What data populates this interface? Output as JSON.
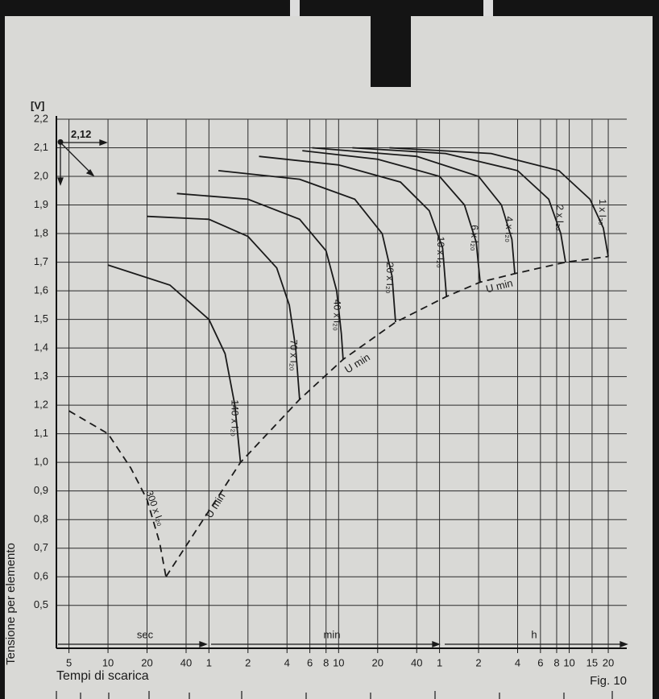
{
  "chart_data": {
    "type": "line",
    "y_unit": "[V]",
    "ylabel": "Tensione per elemento",
    "xlabel": "Tempi di scarica",
    "figure_label": "Fig. 10",
    "x_segments": [
      "sec",
      "min",
      "h"
    ],
    "marker": {
      "label": "2,12",
      "value": 2.12
    },
    "log_x": true,
    "grid": true,
    "xlim": [
      4,
      100000
    ],
    "ylim": [
      0.35,
      2.2
    ],
    "xticks": [
      5,
      10,
      20,
      40,
      {
        "value": 60,
        "label": "1"
      },
      {
        "value": 120,
        "label": "2"
      },
      {
        "value": 240,
        "label": "4"
      },
      {
        "value": 360,
        "label": "6"
      },
      {
        "value": 480,
        "label": "8"
      },
      {
        "value": 600,
        "label": "10"
      },
      {
        "value": 1200,
        "label": "20"
      },
      {
        "value": 2400,
        "label": "40"
      },
      {
        "value": 3600,
        "label": "1"
      },
      {
        "value": 7200,
        "label": "2"
      },
      {
        "value": 14400,
        "label": "4"
      },
      {
        "value": 21600,
        "label": "6"
      },
      {
        "value": 28800,
        "label": "8"
      },
      {
        "value": 36000,
        "label": "10"
      },
      {
        "value": 54000,
        "label": "15"
      },
      {
        "value": 72000,
        "label": "20"
      }
    ],
    "yticks": [
      {
        "value": 0.5,
        "label": "0,5"
      },
      {
        "value": 0.6,
        "label": "0,6"
      },
      {
        "value": 0.7,
        "label": "0,7"
      },
      {
        "value": 0.8,
        "label": "0,8"
      },
      {
        "value": 0.9,
        "label": "0,9"
      },
      {
        "value": 1.0,
        "label": "1,0"
      },
      {
        "value": 1.1,
        "label": "1,1"
      },
      {
        "value": 1.2,
        "label": "1,2"
      },
      {
        "value": 1.3,
        "label": "1,3"
      },
      {
        "value": 1.4,
        "label": "1,4"
      },
      {
        "value": 1.5,
        "label": "1,5"
      },
      {
        "value": 1.6,
        "label": "1,6"
      },
      {
        "value": 1.7,
        "label": "1,7"
      },
      {
        "value": 1.8,
        "label": "1,8"
      },
      {
        "value": 1.9,
        "label": "1,9"
      },
      {
        "value": 2.0,
        "label": "2,0"
      },
      {
        "value": 2.1,
        "label": "2,1"
      },
      {
        "value": 2.2,
        "label": "2,2"
      }
    ],
    "series": [
      {
        "name": "300 x I₂₀",
        "color": "#1a1a1a",
        "dash": true,
        "x": [
          5,
          10,
          15,
          20,
          25,
          28
        ],
        "values": [
          1.18,
          1.1,
          0.98,
          0.87,
          0.72,
          0.6
        ]
      },
      {
        "name": "140 x I₂₀",
        "color": "#1a1a1a",
        "dash": false,
        "x": [
          10,
          30,
          60,
          80,
          95,
          100,
          105
        ],
        "values": [
          1.69,
          1.62,
          1.5,
          1.38,
          1.2,
          1.1,
          1.0
        ]
      },
      {
        "name": "70 x I₂₀",
        "color": "#1a1a1a",
        "dash": false,
        "x": [
          20,
          60,
          120,
          200,
          250,
          280,
          300
        ],
        "values": [
          1.86,
          1.85,
          1.79,
          1.68,
          1.55,
          1.4,
          1.22
        ]
      },
      {
        "name": "40 x I₂₀",
        "color": "#1a1a1a",
        "dash": false,
        "x": [
          34,
          120,
          300,
          480,
          580,
          630,
          650
        ],
        "values": [
          1.94,
          1.92,
          1.85,
          1.74,
          1.6,
          1.45,
          1.36
        ]
      },
      {
        "name": "20 x I₂₀",
        "color": "#1a1a1a",
        "dash": false,
        "x": [
          71,
          300,
          800,
          1300,
          1550,
          1650
        ],
        "values": [
          2.02,
          1.99,
          1.92,
          1.8,
          1.65,
          1.49
        ]
      },
      {
        "name": "10 x I₂₀",
        "color": "#1a1a1a",
        "dash": false,
        "x": [
          146,
          600,
          1800,
          3000,
          3800,
          4070
        ],
        "values": [
          2.07,
          2.04,
          1.98,
          1.88,
          1.75,
          1.58
        ]
      },
      {
        "name": "6 x I₂₀",
        "color": "#1a1a1a",
        "dash": false,
        "x": [
          315,
          1200,
          3600,
          5600,
          6900,
          7400
        ],
        "values": [
          2.09,
          2.06,
          2.0,
          1.9,
          1.77,
          1.63
        ]
      },
      {
        "name": "4 x I₂₀",
        "color": "#1a1a1a",
        "dash": false,
        "x": [
          375,
          2400,
          7200,
          10800,
          13000,
          13700
        ],
        "values": [
          2.1,
          2.07,
          2.0,
          1.9,
          1.78,
          1.66
        ]
      },
      {
        "name": "2 x I₂₀",
        "color": "#1a1a1a",
        "dash": false,
        "x": [
          766,
          4000,
          14400,
          25000,
          31000,
          33700
        ],
        "values": [
          2.1,
          2.08,
          2.02,
          1.92,
          1.8,
          1.7
        ]
      },
      {
        "name": "1 x I₂₀",
        "color": "#1a1a1a",
        "dash": false,
        "x": [
          1480,
          9000,
          30000,
          52000,
          66000,
          72000
        ],
        "values": [
          2.1,
          2.08,
          2.02,
          1.92,
          1.82,
          1.72
        ]
      },
      {
        "name": "U min",
        "color": "#1a1a1a",
        "dash": true,
        "x": [
          28,
          105,
          300,
          650,
          1650,
          4070,
          7400,
          13700,
          33700,
          72000
        ],
        "values": [
          0.6,
          1.0,
          1.22,
          1.36,
          1.49,
          1.58,
          1.63,
          1.66,
          1.7,
          1.72
        ]
      }
    ]
  }
}
